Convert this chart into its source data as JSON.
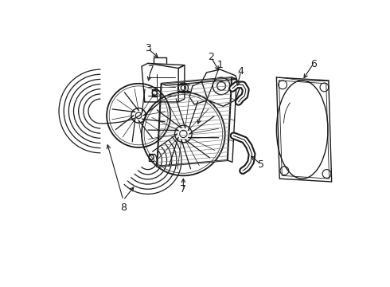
{
  "background_color": "#ffffff",
  "line_color": "#1a1a1a",
  "lw": 1.0,
  "fig_width": 4.9,
  "fig_height": 3.6,
  "dpi": 100
}
